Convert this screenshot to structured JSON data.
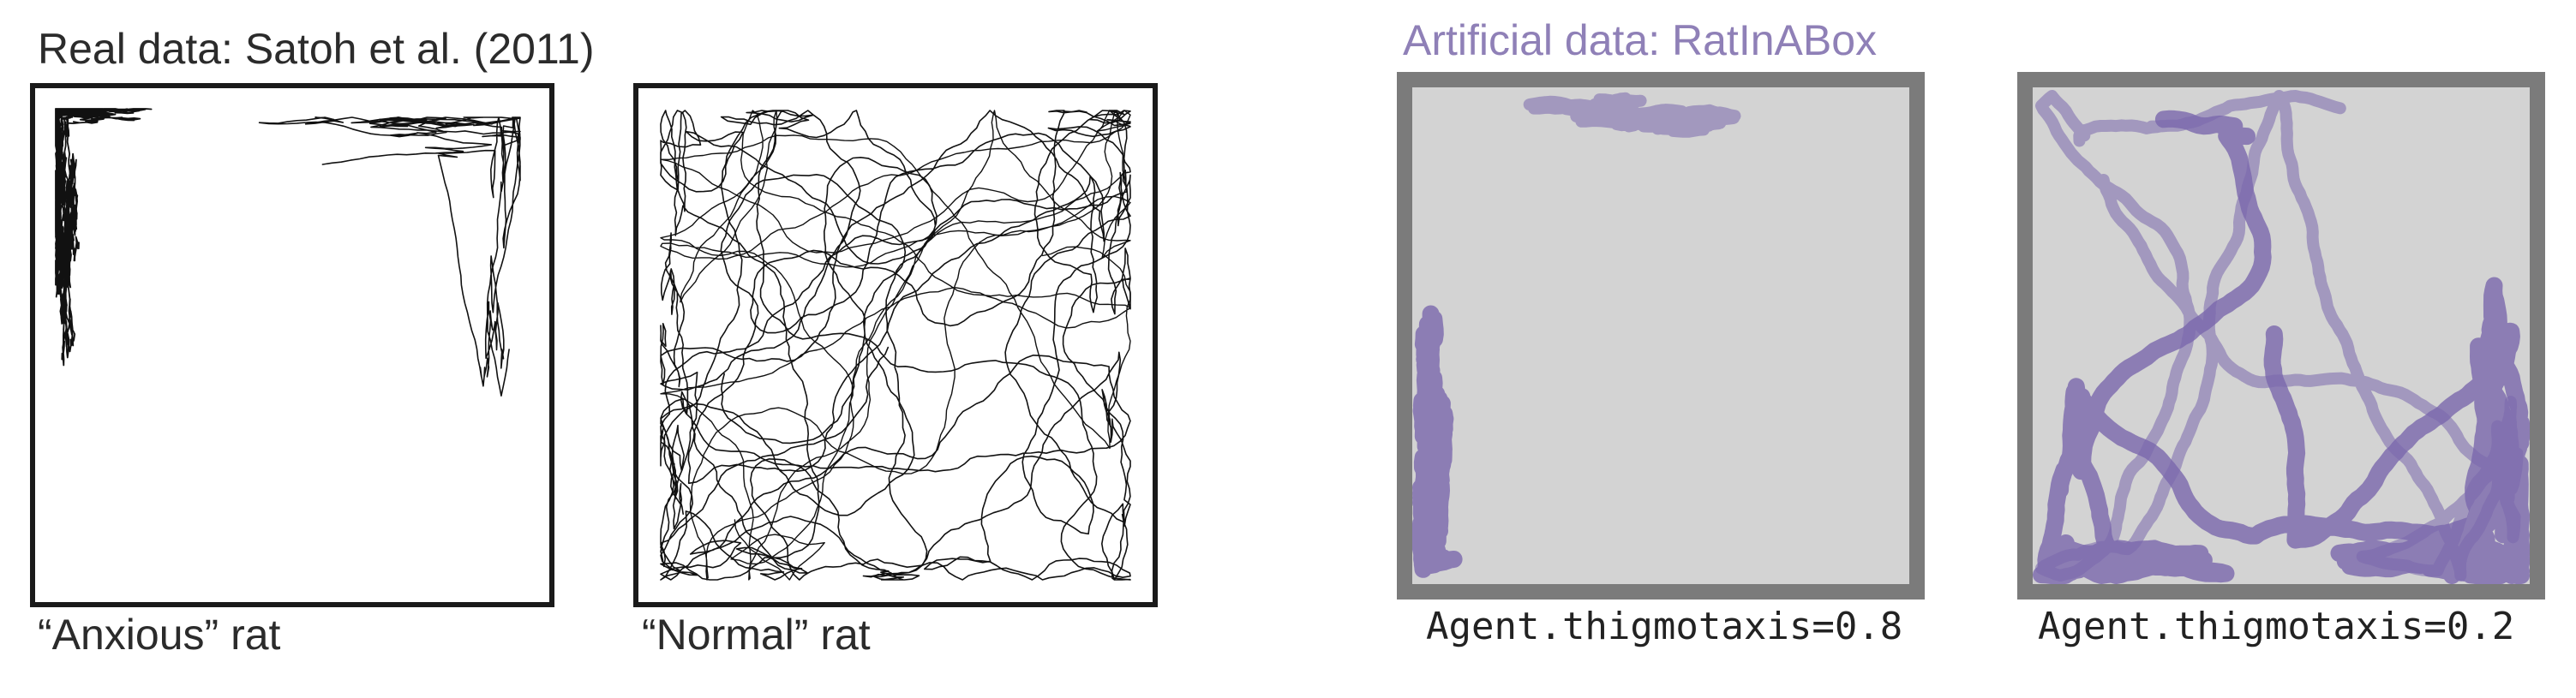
{
  "real": {
    "title": "Real data: Satoh et al. (2011)",
    "captions": [
      "“Anxious” rat",
      "“Normal” rat"
    ]
  },
  "artificial": {
    "title": "Artificial data: RatInABox",
    "captions": [
      "Agent.thigmotaxis=0.8",
      "Agent.thigmotaxis=0.2"
    ]
  },
  "colors": {
    "real_trace": "#111111",
    "real_frame": "#1a1a1a",
    "artificial_trace": "#7a68ad",
    "artificial_title": "#8f80b7",
    "artificial_floor": "#d3d3d3",
    "artificial_frame": "#7b7b7b"
  },
  "thigmotaxis": [
    0.8,
    0.2
  ]
}
